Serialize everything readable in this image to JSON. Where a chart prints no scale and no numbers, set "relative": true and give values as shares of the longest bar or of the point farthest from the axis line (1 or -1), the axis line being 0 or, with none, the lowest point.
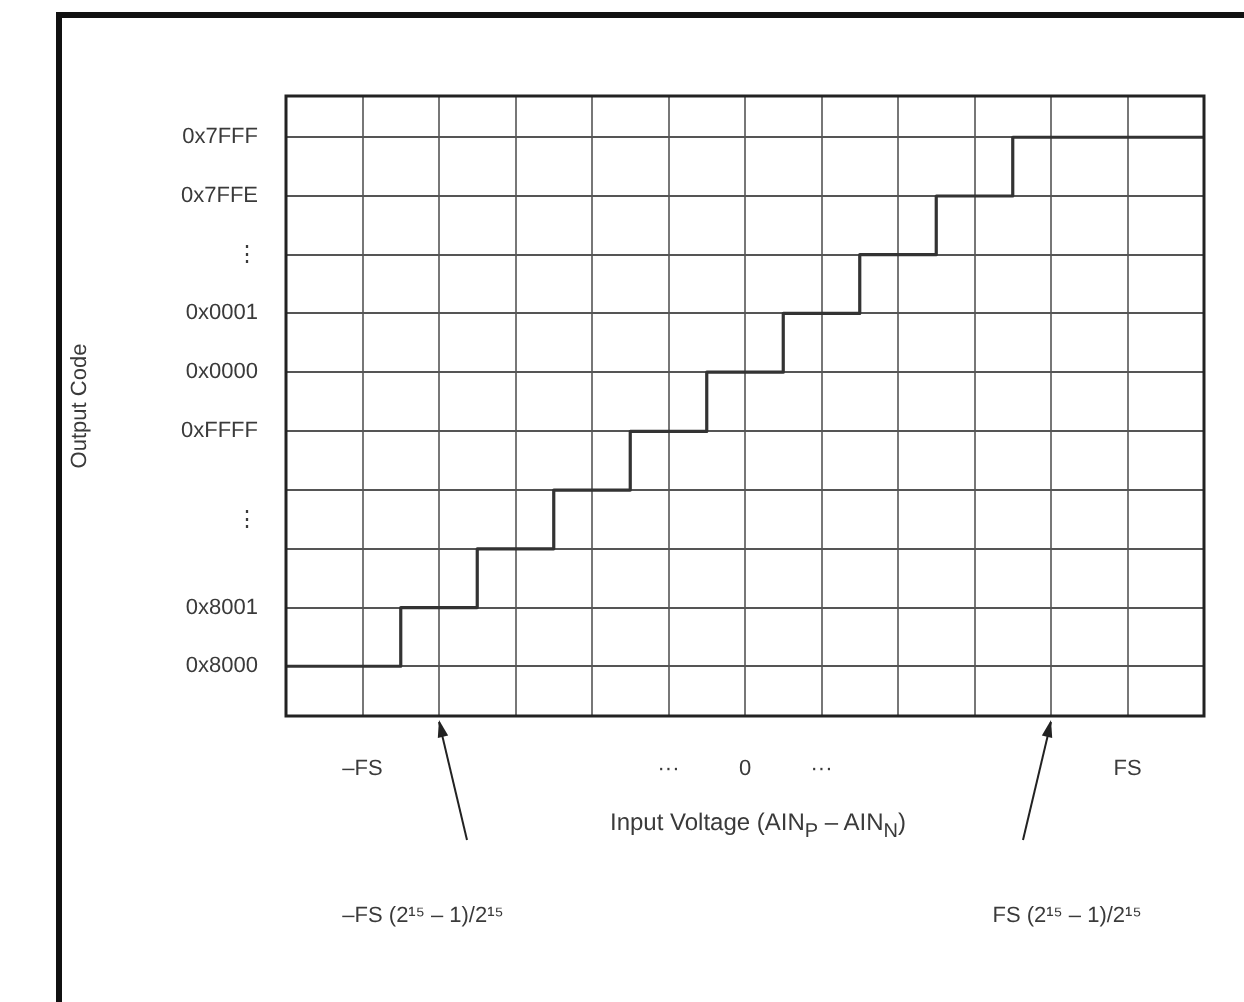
{
  "chart_data": {
    "type": "step",
    "relative": true,
    "xlabel": "Input Voltage (AIN$_{P}$ – AIN$_{N}$)",
    "categories": [
      null,
      "–FS",
      null,
      null,
      null,
      "···",
      "0",
      "···",
      null,
      null,
      null,
      "FS",
      null
    ],
    "series": [
      {
        "color": "#333333",
        "values": [
          0,
          0,
          0.111,
          0.222,
          0.333,
          0.444,
          0.556,
          0.667,
          0.778,
          0.889,
          1,
          1,
          1
        ]
      }
    ],
    "grid": true,
    "legend": false,
    "marker": "none",
    "annotations": [
      "0x8000",
      "0x8001",
      "⋮",
      "0xFFFF",
      "0x0000",
      "0x0001",
      "⋮",
      "0x7FFE",
      "0x7FFF",
      "Output Code",
      "–FS (2¹⁵ – 1)/2¹⁵",
      "FS (2¹⁵ – 1)/2¹⁵"
    ]
  }
}
